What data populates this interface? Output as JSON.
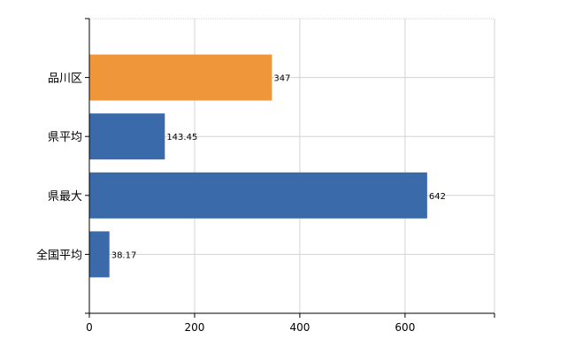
{
  "chart_data": {
    "type": "bar",
    "orientation": "horizontal",
    "categories": [
      "品川区",
      "県平均",
      "県最大",
      "全国平均"
    ],
    "values": [
      347,
      143.45,
      642,
      38.17
    ],
    "value_labels": [
      "347",
      "143.45",
      "642",
      "38.17"
    ],
    "colors": [
      "#f0963a",
      "#3a6aaa",
      "#3a6aaa",
      "#3a6aaa"
    ],
    "title": "",
    "xlabel": "",
    "ylabel": "",
    "xlim": [
      0,
      770
    ],
    "xticks": [
      0,
      200,
      400,
      600
    ],
    "xtick_labels": [
      "0",
      "200",
      "400",
      "600"
    ],
    "grid": true,
    "legend": "none"
  }
}
